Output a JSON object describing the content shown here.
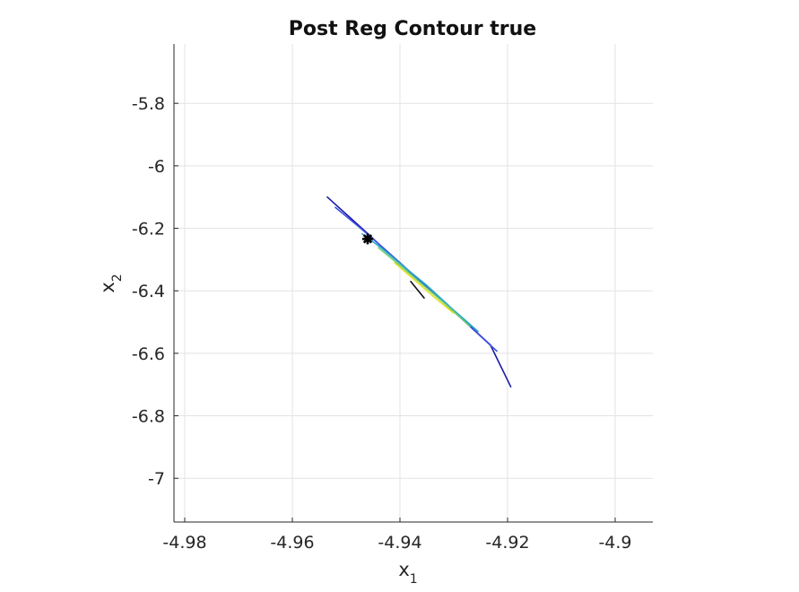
{
  "chart_data": {
    "type": "line",
    "title": "Post Reg Contour true",
    "xlabel": "x",
    "xlabel_subscript": "1",
    "ylabel": "x",
    "ylabel_subscript": "2",
    "xlim": [
      -4.982,
      -4.893
    ],
    "ylim": [
      -7.14,
      -5.61
    ],
    "grid": true,
    "xticks": [
      -4.98,
      -4.96,
      -4.94,
      -4.92,
      -4.9
    ],
    "xtick_labels": [
      "-4.98",
      "-4.96",
      "-4.94",
      "-4.92",
      "-4.9"
    ],
    "yticks": [
      -5.8,
      -6.0,
      -6.2,
      -6.4,
      -6.6,
      -6.8,
      -7.0
    ],
    "ytick_labels": [
      "-5.8",
      "-6",
      "-6.2",
      "-6.4",
      "-6.6",
      "-6.8",
      "-7"
    ],
    "contour_lines": [
      {
        "color": "#1a1aa8",
        "x": [
          -4.9535,
          -4.9492,
          -4.9461,
          -4.9438,
          -4.9395,
          -4.9335,
          -4.928,
          -4.9232,
          -4.9194
        ],
        "y": [
          -6.1,
          -6.167,
          -6.215,
          -6.252,
          -6.318,
          -6.412,
          -6.497,
          -6.573,
          -6.707
        ]
      },
      {
        "color": "#3d4fe0",
        "x": [
          -4.952,
          -4.9475,
          -4.943,
          -4.938,
          -4.932,
          -4.9265,
          -4.922
        ],
        "y": [
          -6.133,
          -6.197,
          -6.264,
          -6.342,
          -6.434,
          -6.522,
          -6.593
        ]
      },
      {
        "color": "#26a7c9",
        "x": [
          -4.947,
          -4.9435,
          -4.94,
          -4.9352,
          -4.93,
          -4.9255
        ],
        "y": [
          -6.218,
          -6.262,
          -6.312,
          -6.38,
          -6.462,
          -6.53
        ]
      },
      {
        "color": "#6fce73",
        "x": [
          -4.944,
          -4.9395,
          -4.935,
          -4.9305,
          -4.927
        ],
        "y": [
          -6.262,
          -6.326,
          -6.392,
          -6.458,
          -6.514
        ]
      },
      {
        "color": "#e6e020",
        "x": [
          -4.941,
          -4.9375,
          -4.9335,
          -4.93
        ],
        "y": [
          -6.31,
          -6.362,
          -6.422,
          -6.472
        ]
      },
      {
        "color": "#111111",
        "x": [
          -4.938,
          -4.9355
        ],
        "y": [
          -6.37,
          -6.423
        ]
      }
    ],
    "marker": {
      "x": -4.946,
      "y": -6.234,
      "symbol": "*",
      "color": "#000000"
    }
  }
}
